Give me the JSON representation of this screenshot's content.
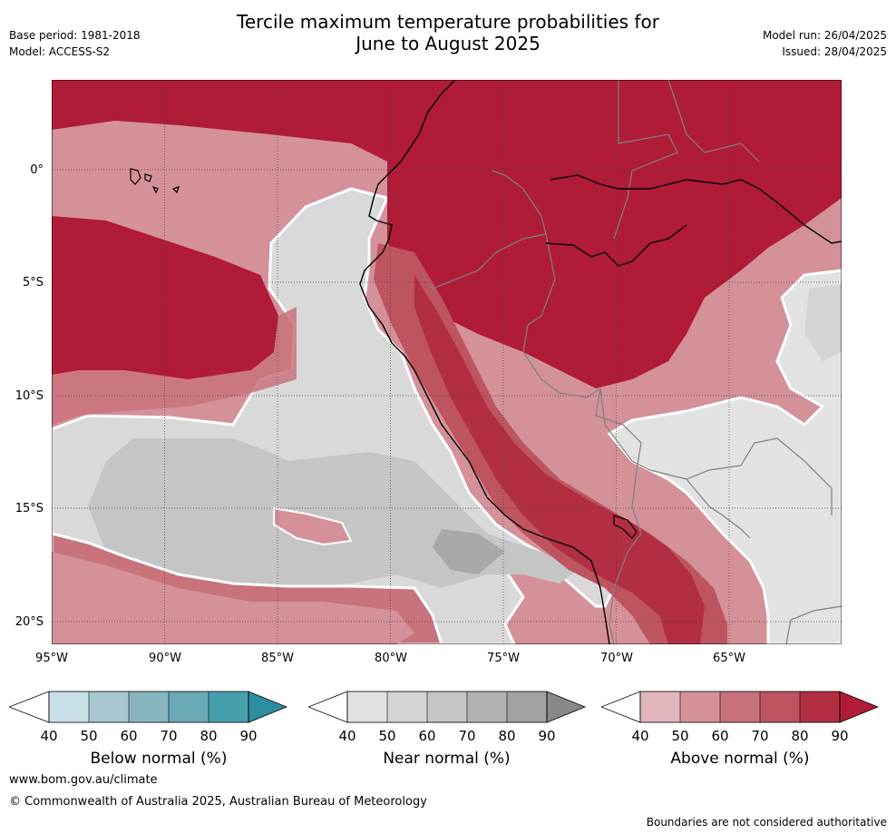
{
  "header": {
    "title_line1": "Tercile maximum temperature probabilities for",
    "title_line2": "June to August 2025",
    "base_period": "Base period: 1981-2018",
    "model": "Model: ACCESS-S2",
    "model_run": "Model run: 26/04/2025",
    "issued": "Issued: 28/04/2025"
  },
  "map": {
    "lat_labels": [
      "0°",
      "5°S",
      "10°S",
      "15°S",
      "20°S"
    ],
    "lon_labels": [
      "95°W",
      "90°W",
      "85°W",
      "80°W",
      "75°W",
      "70°W",
      "65°W"
    ],
    "colors": {
      "above": [
        "#e0b5bb",
        "#d4919a",
        "#c8727b",
        "#be5460",
        "#b22e42",
        "#b01c38"
      ],
      "near": [
        "#e2e2e2",
        "#d4d4d4",
        "#c5c5c5",
        "#b3b3b3",
        "#a2a2a2",
        "#888888"
      ],
      "below": [
        "#c8e0e5",
        "#a7c8cf",
        "#89b5c1",
        "#6aa9b6",
        "#479fae",
        "#2e8ea1"
      ],
      "grid": "#444444",
      "country_border": "#808080",
      "coastline": "#000000",
      "category_boundary": "#ffffff"
    }
  },
  "legends": {
    "below": {
      "title": "Below normal (%)",
      "ticks": [
        "40",
        "50",
        "60",
        "70",
        "80",
        "90"
      ]
    },
    "near": {
      "title": "Near normal (%)",
      "ticks": [
        "40",
        "50",
        "60",
        "70",
        "80",
        "90"
      ]
    },
    "above": {
      "title": "Above normal (%)",
      "ticks": [
        "40",
        "50",
        "60",
        "70",
        "80",
        "90"
      ]
    }
  },
  "footer": {
    "url": "www.bom.gov.au/climate",
    "copyright": "© Commonwealth of Australia 2025, Australian Bureau of Meteorology",
    "disclaimer": "Boundaries are not considered authoritative"
  }
}
